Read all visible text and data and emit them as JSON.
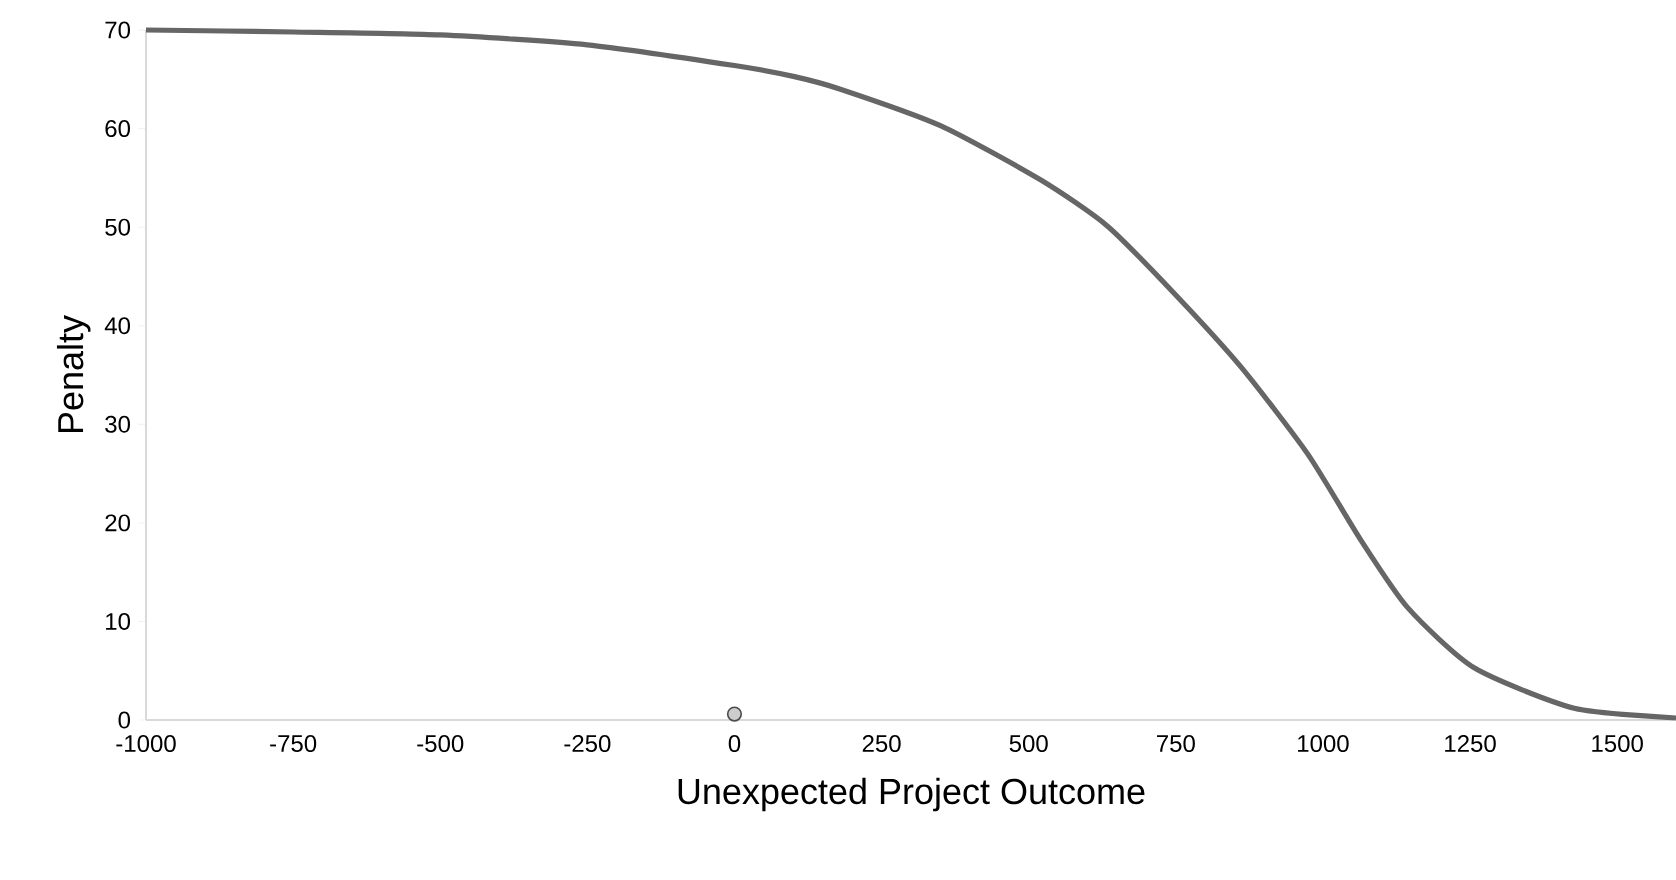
{
  "chart_data": {
    "type": "line",
    "xlabel": "Unexpected Project Outcome",
    "ylabel": "Penalty",
    "xlim": [
      -1000,
      1600
    ],
    "ylim": [
      0,
      70
    ],
    "xticks": [
      -1000,
      -750,
      -500,
      -250,
      0,
      250,
      500,
      750,
      1000,
      1250,
      1500
    ],
    "yticks": [
      0,
      10,
      20,
      30,
      40,
      50,
      60,
      70
    ],
    "grid": false,
    "series": [
      {
        "color": "#666666",
        "x": [
          -1000,
          -750,
          -500,
          -250,
          0,
          100,
          180,
          350,
          520,
          634,
          747,
          861,
          974,
          1065,
          1144,
          1257,
          1427,
          1600
        ],
        "values": [
          70,
          69.8,
          69.5,
          68.5,
          66.4,
          65.3,
          64,
          60.3,
          54.8,
          50.1,
          43.3,
          35.8,
          27,
          18.2,
          11.4,
          5.3,
          1.2,
          0.2
        ]
      },
      {
        "type": "scatter",
        "color": "#cccccc",
        "x": [
          0
        ],
        "values": [
          0.6
        ]
      }
    ]
  }
}
